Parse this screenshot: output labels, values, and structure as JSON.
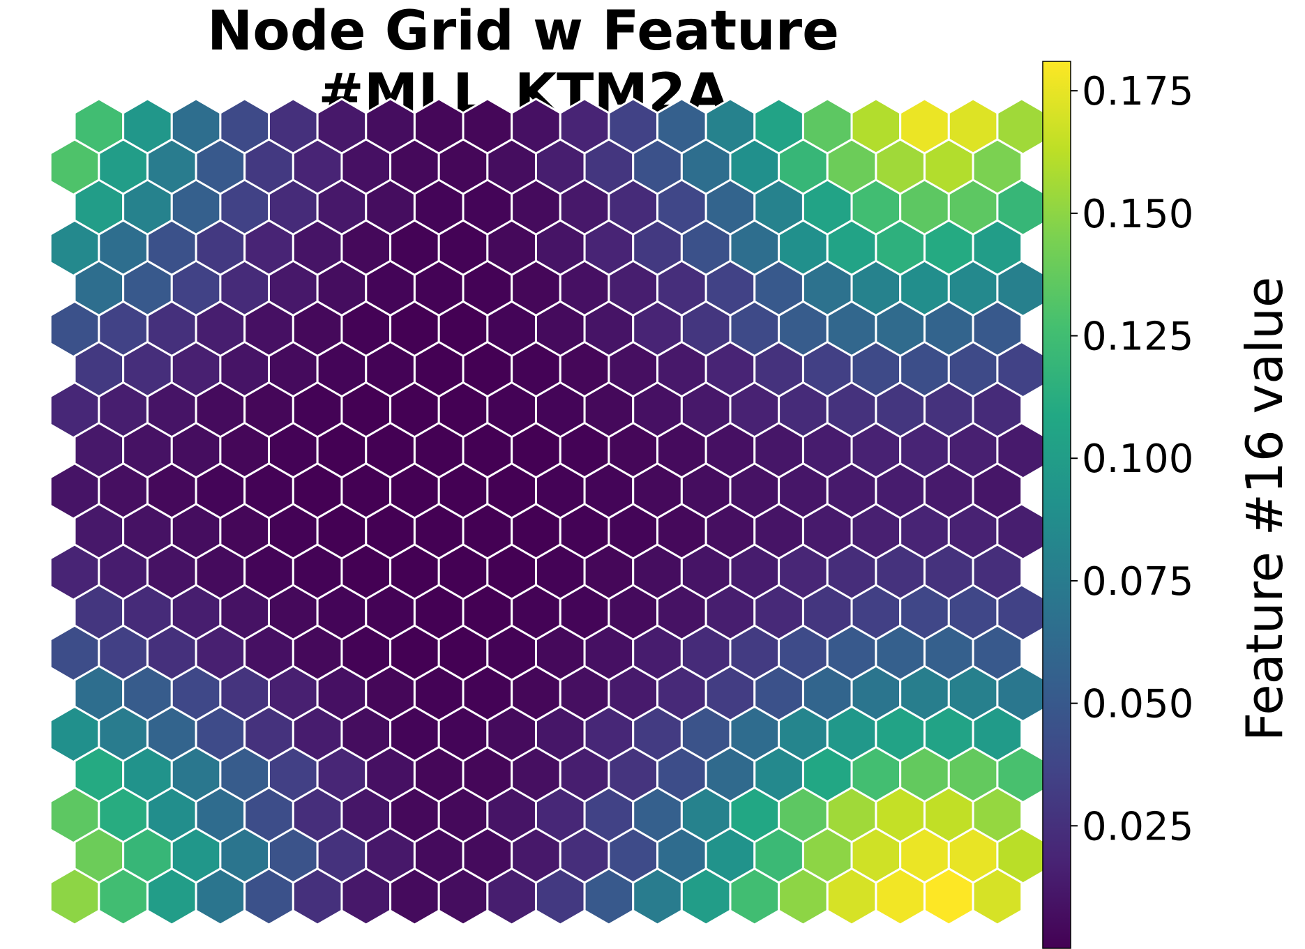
{
  "chart_data": {
    "type": "heatmap",
    "subtype": "hexagonal-som-grid",
    "title": "Node Grid w Feature #MLL_KTM2A",
    "colorbar_label": "Feature #16 value",
    "colormap": "viridis",
    "vmin": 0.0,
    "vmax": 0.181,
    "colorbar_ticks": [
      "0.025",
      "0.050",
      "0.075",
      "0.100",
      "0.125",
      "0.150",
      "0.175"
    ],
    "cell_edge_color": "#ffffff",
    "rows_top_to_bottom": [
      [
        0.125,
        0.095,
        0.065,
        0.04,
        0.025,
        0.012,
        0.006,
        0.003,
        0.003,
        0.008,
        0.018,
        0.035,
        0.055,
        0.08,
        0.105,
        0.135,
        0.16,
        0.176,
        0.172,
        0.155
      ],
      [
        0.13,
        0.1,
        0.075,
        0.05,
        0.03,
        0.018,
        0.008,
        0.004,
        0.003,
        0.006,
        0.015,
        0.028,
        0.045,
        0.065,
        0.09,
        0.12,
        0.14,
        0.155,
        0.16,
        0.145
      ],
      [
        0.1,
        0.08,
        0.055,
        0.035,
        0.022,
        0.012,
        0.006,
        0.002,
        0.002,
        0.005,
        0.012,
        0.022,
        0.038,
        0.058,
        0.08,
        0.105,
        0.125,
        0.135,
        0.135,
        0.12
      ],
      [
        0.085,
        0.065,
        0.045,
        0.03,
        0.018,
        0.01,
        0.004,
        0.001,
        0.001,
        0.004,
        0.01,
        0.018,
        0.03,
        0.045,
        0.065,
        0.09,
        0.105,
        0.115,
        0.11,
        0.1
      ],
      [
        0.065,
        0.05,
        0.035,
        0.022,
        0.012,
        0.006,
        0.002,
        0.001,
        0.001,
        0.003,
        0.008,
        0.015,
        0.024,
        0.035,
        0.05,
        0.068,
        0.08,
        0.088,
        0.085,
        0.078
      ],
      [
        0.045,
        0.035,
        0.025,
        0.015,
        0.008,
        0.004,
        0.001,
        0.0,
        0.0,
        0.002,
        0.005,
        0.01,
        0.018,
        0.028,
        0.04,
        0.052,
        0.06,
        0.063,
        0.058,
        0.05
      ],
      [
        0.03,
        0.024,
        0.016,
        0.01,
        0.005,
        0.002,
        0.001,
        0.0,
        0.0,
        0.001,
        0.003,
        0.007,
        0.012,
        0.018,
        0.026,
        0.034,
        0.04,
        0.043,
        0.04,
        0.035
      ],
      [
        0.02,
        0.015,
        0.01,
        0.005,
        0.003,
        0.001,
        0.0,
        0.0,
        0.0,
        0.001,
        0.002,
        0.004,
        0.008,
        0.012,
        0.017,
        0.022,
        0.026,
        0.028,
        0.026,
        0.022
      ],
      [
        0.012,
        0.009,
        0.006,
        0.003,
        0.001,
        0.0,
        0.0,
        0.0,
        0.0,
        0.0,
        0.001,
        0.003,
        0.005,
        0.008,
        0.011,
        0.014,
        0.017,
        0.018,
        0.016,
        0.013
      ],
      [
        0.01,
        0.007,
        0.004,
        0.002,
        0.001,
        0.0,
        0.0,
        0.0,
        0.0,
        0.0,
        0.001,
        0.002,
        0.004,
        0.006,
        0.009,
        0.011,
        0.013,
        0.014,
        0.013,
        0.011
      ],
      [
        0.012,
        0.009,
        0.006,
        0.003,
        0.001,
        0.0,
        0.0,
        0.0,
        0.0,
        0.0,
        0.001,
        0.002,
        0.004,
        0.007,
        0.01,
        0.013,
        0.016,
        0.018,
        0.017,
        0.015
      ],
      [
        0.018,
        0.014,
        0.009,
        0.005,
        0.002,
        0.001,
        0.0,
        0.0,
        0.0,
        0.0,
        0.001,
        0.003,
        0.006,
        0.01,
        0.014,
        0.019,
        0.023,
        0.026,
        0.026,
        0.024
      ],
      [
        0.028,
        0.022,
        0.015,
        0.009,
        0.004,
        0.002,
        0.001,
        0.0,
        0.0,
        0.001,
        0.002,
        0.005,
        0.009,
        0.015,
        0.021,
        0.028,
        0.034,
        0.038,
        0.038,
        0.035
      ],
      [
        0.042,
        0.034,
        0.025,
        0.016,
        0.008,
        0.004,
        0.001,
        0.0,
        0.0,
        0.001,
        0.004,
        0.008,
        0.014,
        0.022,
        0.031,
        0.041,
        0.05,
        0.055,
        0.055,
        0.05
      ],
      [
        0.065,
        0.052,
        0.039,
        0.027,
        0.016,
        0.008,
        0.003,
        0.001,
        0.001,
        0.003,
        0.007,
        0.013,
        0.021,
        0.032,
        0.045,
        0.059,
        0.07,
        0.077,
        0.078,
        0.072
      ],
      [
        0.09,
        0.075,
        0.058,
        0.041,
        0.026,
        0.014,
        0.006,
        0.002,
        0.002,
        0.005,
        0.011,
        0.02,
        0.031,
        0.046,
        0.064,
        0.082,
        0.096,
        0.105,
        0.105,
        0.098
      ],
      [
        0.11,
        0.092,
        0.072,
        0.052,
        0.034,
        0.019,
        0.008,
        0.003,
        0.003,
        0.007,
        0.015,
        0.027,
        0.042,
        0.062,
        0.085,
        0.108,
        0.126,
        0.137,
        0.137,
        0.128
      ],
      [
        0.135,
        0.112,
        0.088,
        0.064,
        0.042,
        0.024,
        0.011,
        0.004,
        0.004,
        0.01,
        0.02,
        0.035,
        0.055,
        0.08,
        0.108,
        0.135,
        0.155,
        0.165,
        0.164,
        0.152
      ],
      [
        0.14,
        0.12,
        0.095,
        0.07,
        0.046,
        0.026,
        0.012,
        0.005,
        0.005,
        0.012,
        0.024,
        0.041,
        0.064,
        0.092,
        0.122,
        0.15,
        0.168,
        0.176,
        0.175,
        0.162
      ],
      [
        0.15,
        0.125,
        0.1,
        0.07,
        0.045,
        0.025,
        0.012,
        0.005,
        0.006,
        0.015,
        0.03,
        0.05,
        0.075,
        0.1,
        0.125,
        0.15,
        0.17,
        0.178,
        0.181,
        0.17
      ]
    ]
  }
}
